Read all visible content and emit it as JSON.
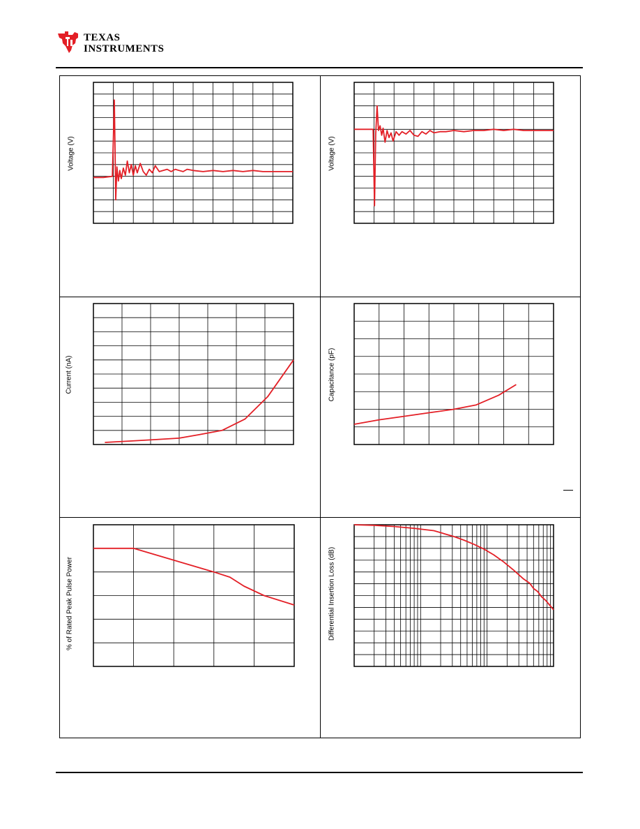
{
  "header": {
    "brand_line1": "Texas",
    "brand_line2": "Instruments"
  },
  "colors": {
    "trace": "#e31f26",
    "grid": "#000000",
    "logo": "#e31f26"
  },
  "charts": [
    {
      "id": "chart-1",
      "type": "line",
      "ylabel": "Voltage (V)",
      "grid": {
        "xdiv": 10,
        "ydiv": 12
      },
      "ylim": [
        0,
        12
      ],
      "xlim": [
        0,
        10
      ],
      "series": [
        {
          "x": [
            0,
            0.5,
            0.95,
            1.05,
            1.12,
            1.18,
            1.25,
            1.32,
            1.4,
            1.5,
            1.6,
            1.7,
            1.8,
            1.9,
            2.0,
            2.1,
            2.2,
            2.35,
            2.5,
            2.65,
            2.8,
            2.95,
            3.1,
            3.3,
            3.5,
            3.7,
            3.9,
            4.1,
            4.3,
            4.5,
            4.7,
            5,
            5.5,
            6,
            6.5,
            7,
            7.5,
            8,
            8.5,
            9,
            9.5,
            10
          ],
          "y": [
            3.9,
            3.9,
            4.0,
            10.5,
            2.0,
            4.8,
            3.6,
            4.5,
            3.8,
            4.7,
            4.1,
            5.3,
            4.3,
            5.0,
            4.1,
            4.9,
            4.3,
            5.1,
            4.4,
            4.1,
            4.6,
            4.3,
            4.9,
            4.4,
            4.5,
            4.6,
            4.4,
            4.6,
            4.5,
            4.4,
            4.6,
            4.5,
            4.4,
            4.5,
            4.4,
            4.5,
            4.4,
            4.5,
            4.4,
            4.4,
            4.4,
            4.4
          ]
        }
      ]
    },
    {
      "id": "chart-2",
      "type": "line",
      "ylabel": "Voltage (V)",
      "grid": {
        "xdiv": 10,
        "ydiv": 12
      },
      "ylim": [
        0,
        12
      ],
      "xlim": [
        0,
        10
      ],
      "series": [
        {
          "x": [
            0,
            0.6,
            0.95,
            1.02,
            1.08,
            1.15,
            1.22,
            1.3,
            1.38,
            1.45,
            1.55,
            1.65,
            1.75,
            1.85,
            1.95,
            2.1,
            2.25,
            2.4,
            2.6,
            2.8,
            3.0,
            3.2,
            3.4,
            3.6,
            3.8,
            4.0,
            4.3,
            4.6,
            5,
            5.5,
            6,
            6.5,
            7,
            7.5,
            8,
            8.5,
            9,
            9.5,
            10
          ],
          "y": [
            8.0,
            8.0,
            8.0,
            1.5,
            7.6,
            10.0,
            7.9,
            8.3,
            7.5,
            8.1,
            6.9,
            7.9,
            7.3,
            7.7,
            7.0,
            7.8,
            7.5,
            7.8,
            7.6,
            7.9,
            7.5,
            7.4,
            7.8,
            7.6,
            7.9,
            7.7,
            7.8,
            7.8,
            7.9,
            7.8,
            7.9,
            7.9,
            8.0,
            7.9,
            8.0,
            7.9,
            7.9,
            7.9,
            7.9
          ]
        }
      ]
    },
    {
      "id": "chart-3",
      "type": "line",
      "ylabel": "Current (nA)",
      "grid": {
        "xdiv": 7,
        "ydiv": 10
      },
      "ylim": [
        0,
        10
      ],
      "xlim": [
        0,
        7
      ],
      "series": [
        {
          "x": [
            0.4,
            1.3,
            2.2,
            3.0,
            3.7,
            4.5,
            5.3,
            6.1,
            7.0
          ],
          "y": [
            0.15,
            0.25,
            0.35,
            0.45,
            0.7,
            1.0,
            1.8,
            3.4,
            6.0
          ]
        }
      ]
    },
    {
      "id": "chart-4",
      "type": "line",
      "ylabel": "Capacitance (pF)",
      "grid": {
        "xdiv": 8,
        "ydiv": 8
      },
      "ylim": [
        0,
        8
      ],
      "xlim": [
        0,
        8
      ],
      "series": [
        {
          "x": [
            0,
            1,
            2,
            3,
            4,
            4.9,
            5.8,
            6.5
          ],
          "y": [
            1.15,
            1.4,
            1.6,
            1.8,
            2.0,
            2.25,
            2.8,
            3.4
          ]
        }
      ]
    },
    {
      "id": "chart-5",
      "type": "line",
      "ylabel": "% of Rated Peak Pulse Power",
      "grid": {
        "xdiv": 5,
        "ydiv": 6
      },
      "ylim": [
        0,
        6
      ],
      "xlim": [
        0,
        5
      ],
      "series": [
        {
          "x": [
            0,
            1,
            1.5,
            2,
            2.5,
            3,
            3.4,
            3.75,
            4.25,
            5.0
          ],
          "y": [
            5.0,
            5.0,
            4.75,
            4.5,
            4.25,
            4.0,
            3.78,
            3.4,
            3.0,
            2.6
          ]
        }
      ]
    },
    {
      "id": "chart-6",
      "type": "line",
      "ylabel": "Differential Insertion Loss (dB)",
      "grid": {
        "xlog": true,
        "ydiv": 12
      },
      "ylim": [
        0,
        12
      ],
      "xlim": [
        0,
        1
      ],
      "series": [
        {
          "x": [
            0,
            0.1,
            0.2,
            0.3,
            0.4,
            0.45,
            0.5,
            0.55,
            0.6,
            0.65,
            0.7,
            0.75,
            0.8,
            0.85,
            0.88,
            0.9,
            0.92,
            0.94,
            0.96,
            0.98,
            1.0
          ],
          "y": [
            12.0,
            11.95,
            11.85,
            11.7,
            11.5,
            11.25,
            11.0,
            10.7,
            10.35,
            9.95,
            9.45,
            8.85,
            8.15,
            7.4,
            7.05,
            6.6,
            6.35,
            5.9,
            5.6,
            5.2,
            4.8
          ]
        }
      ]
    }
  ]
}
